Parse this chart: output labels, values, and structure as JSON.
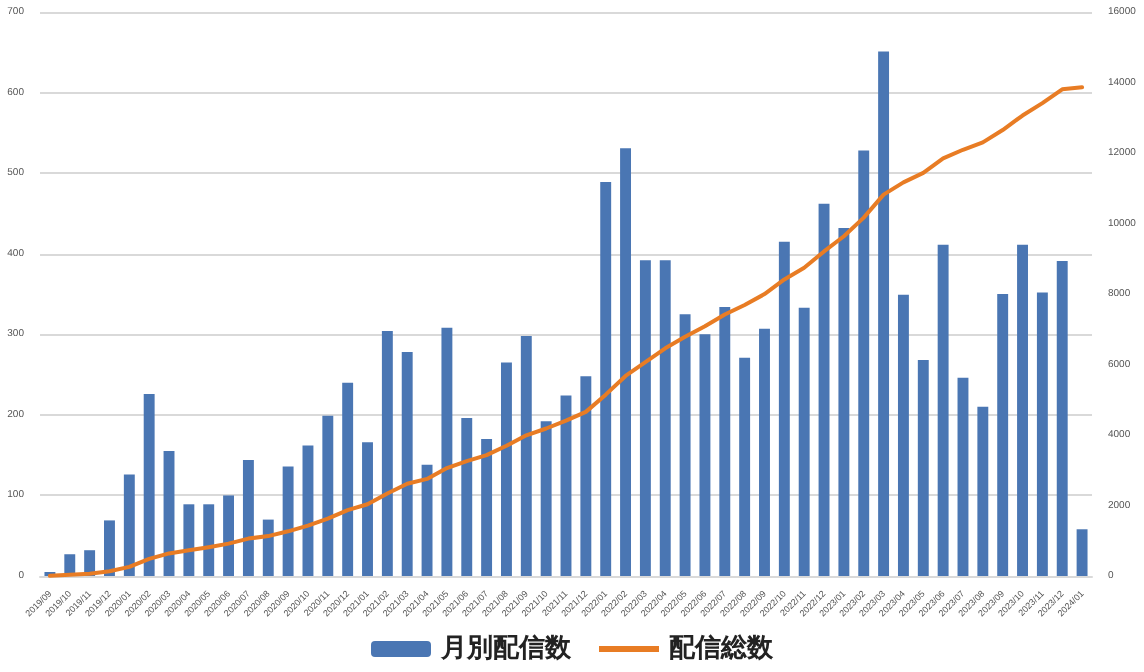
{
  "chart_data": {
    "type": "bar",
    "categories": [
      "2019/09",
      "2019/10",
      "2019/11",
      "2019/12",
      "2020/01",
      "2020/02",
      "2020/03",
      "2020/04",
      "2020/05",
      "2020/06",
      "2020/07",
      "2020/08",
      "2020/09",
      "2020/10",
      "2020/11",
      "2020/12",
      "2021/01",
      "2021/02",
      "2021/03",
      "2021/04",
      "2021/05",
      "2021/06",
      "2021/07",
      "2021/08",
      "2021/09",
      "2021/10",
      "2021/11",
      "2021/12",
      "2022/01",
      "2022/02",
      "2022/03",
      "2022/04",
      "2022/05",
      "2022/06",
      "2022/07",
      "2022/08",
      "2022/09",
      "2022/10",
      "2022/11",
      "2022/12",
      "2023/01",
      "2023/02",
      "2023/03",
      "2023/04",
      "2023/05",
      "2023/06",
      "2023/07",
      "2023/08",
      "2023/09",
      "2023/10",
      "2023/11",
      "2023/12",
      "2024/01"
    ],
    "series": [
      {
        "name": "月別配信数",
        "color": "#4a76b3",
        "values": [
          5,
          27,
          32,
          69,
          126,
          226,
          155,
          89,
          89,
          100,
          144,
          70,
          136,
          162,
          199,
          240,
          166,
          304,
          278,
          138,
          308,
          196,
          170,
          265,
          298,
          192,
          224,
          248,
          489,
          531,
          392,
          392,
          325,
          300,
          334,
          271,
          307,
          415,
          333,
          462,
          432,
          528,
          651,
          349,
          268,
          411,
          246,
          210,
          350,
          411,
          352,
          391,
          58
        ]
      },
      {
        "name": "配信総数",
        "type": "line",
        "axis": "y2",
        "color": "#e87c24",
        "values": [
          5,
          32,
          64,
          133,
          259,
          485,
          640,
          729,
          818,
          918,
          1062,
          1132,
          1268,
          1430,
          1629,
          1869,
          2035,
          2339,
          2617,
          2755,
          3063,
          3259,
          3429,
          3694,
          3992,
          4184,
          4408,
          4656,
          5145,
          5676,
          6068,
          6460,
          6785,
          7085,
          7419,
          7690,
          7997,
          8412,
          8745,
          9207,
          9639,
          10167,
          10818,
          11167,
          11435,
          11846,
          12092,
          12302,
          12652,
          13063,
          13415,
          13806,
          13864
        ]
      }
    ],
    "ylim": [
      0,
      700
    ],
    "yticks": [
      0,
      100,
      200,
      300,
      400,
      500,
      600,
      700
    ],
    "y2lim": [
      0,
      16000
    ],
    "y2ticks": [
      0,
      2000,
      4000,
      6000,
      8000,
      10000,
      12000,
      14000,
      16000
    ],
    "grid": "y",
    "legend": "bottom",
    "marker": "none",
    "line_style": "solid"
  }
}
